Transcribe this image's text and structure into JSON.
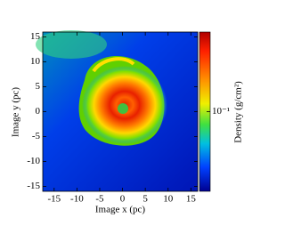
{
  "chart_data": {
    "type": "heatmap",
    "x_label": "Image x  (pc)",
    "y_label": "Image y  (pc)",
    "xlim": [
      -17.5,
      16.5
    ],
    "ylim": [
      -16,
      16
    ],
    "xticks": [
      -15,
      -10,
      -5,
      0,
      5,
      10,
      15
    ],
    "yticks": [
      -15,
      -10,
      -5,
      0,
      5,
      10,
      15
    ],
    "colorbar": {
      "label": "Density  (g/cm²)",
      "log": true,
      "lim": [
        0.01,
        1
      ],
      "ticks": [
        {
          "value": 0.1,
          "label": "10⁻¹"
        }
      ]
    }
  }
}
